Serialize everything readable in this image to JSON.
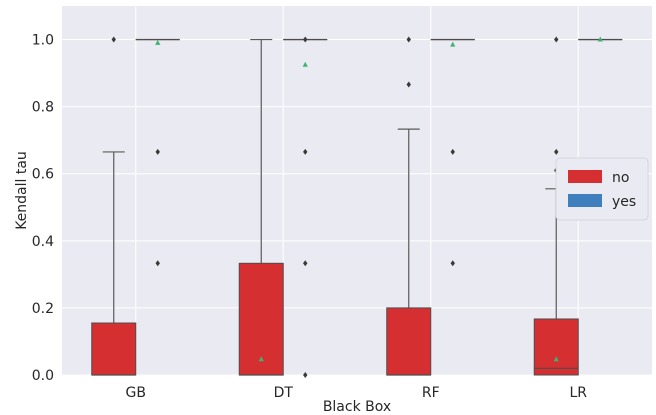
{
  "chart_data": {
    "type": "boxplot",
    "xlabel": "Black Box",
    "ylabel": "Kendall tau",
    "categories": [
      "GB",
      "DT",
      "RF",
      "LR"
    ],
    "ylim": [
      0,
      1.1
    ],
    "yticks": [
      "0.0",
      "0.2",
      "0.4",
      "0.6",
      "0.8",
      "1.0"
    ],
    "grid": true,
    "legend_position": "right",
    "series": [
      {
        "name": "no",
        "color": "#d62f32",
        "boxes": [
          {
            "q1": 0.0,
            "median": 0.0,
            "q3": 0.155,
            "whisker_low": 0.0,
            "whisker_high": 0.665,
            "mean": null,
            "outliers": [
              1.0
            ]
          },
          {
            "q1": 0.0,
            "median": 0.0,
            "q3": 0.333,
            "whisker_low": 0.0,
            "whisker_high": 1.0,
            "mean": 0.047,
            "outliers": []
          },
          {
            "q1": 0.0,
            "median": 0.0,
            "q3": 0.2,
            "whisker_low": 0.0,
            "whisker_high": 0.733,
            "mean": null,
            "outliers": [
              0.866,
              1.0
            ]
          },
          {
            "q1": 0.0,
            "median": 0.02,
            "q3": 0.167,
            "whisker_low": 0.0,
            "whisker_high": 0.555,
            "mean": 0.047,
            "outliers": [
              0.61,
              0.665,
              1.0
            ]
          }
        ]
      },
      {
        "name": "yes",
        "color": "#3f7fbd",
        "boxes": [
          {
            "q1": 1.0,
            "median": 1.0,
            "q3": 1.0,
            "whisker_low": 1.0,
            "whisker_high": 1.0,
            "mean": 0.99,
            "outliers": [
              0.333,
              0.665
            ]
          },
          {
            "q1": 1.0,
            "median": 1.0,
            "q3": 1.0,
            "whisker_low": 1.0,
            "whisker_high": 1.0,
            "mean": 0.925,
            "outliers": [
              0.0,
              0.333,
              0.665,
              1.0
            ]
          },
          {
            "q1": 1.0,
            "median": 1.0,
            "q3": 1.0,
            "whisker_low": 1.0,
            "whisker_high": 1.0,
            "mean": 0.985,
            "outliers": [
              0.333,
              0.665
            ]
          },
          {
            "q1": 1.0,
            "median": 1.0,
            "q3": 1.0,
            "whisker_low": 1.0,
            "whisker_high": 1.0,
            "mean": 1.0,
            "outliers": []
          }
        ]
      }
    ]
  },
  "colors": {
    "plot_background": "#eaeaf2",
    "grid": "#ffffff",
    "whisker": "#5a5a5a",
    "outlier": "#3a3a3a",
    "mean_marker": "#3cb371"
  }
}
